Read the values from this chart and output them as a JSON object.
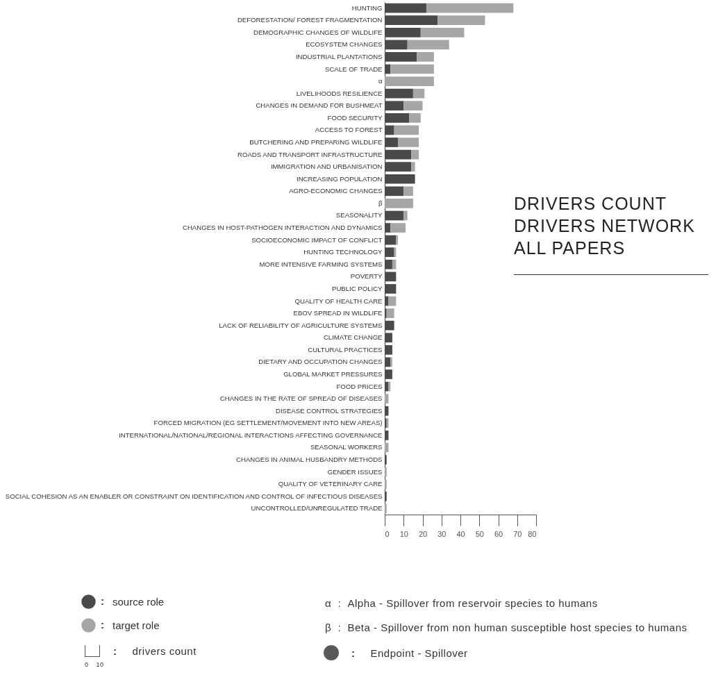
{
  "chart_data": {
    "type": "bar",
    "orientation": "horizontal",
    "stacked": true,
    "title": "DRIVERS COUNT\nDRIVERS NETWORK\nALL PAPERS",
    "categories": [
      "HUNTING",
      "DEFORESTATION/ FOREST FRAGMENTATION",
      "DEMOGRAPHIC CHANGES OF WILDLIFE",
      "ECOSYSTEM CHANGES",
      "INDUSTRIAL PLANTATIONS",
      "SCALE OF TRADE",
      "α",
      "LIVELIHOODS RESILIENCE",
      "CHANGES IN DEMAND FOR BUSHMEAT",
      "FOOD SECURITY",
      "ACCESS TO FOREST",
      "BUTCHERING AND PREPARING WILDLIFE",
      "ROADS AND TRANSPORT INFRASTRUCTURE",
      "IMMIGRATION AND URBANISATION",
      "INCREASING POPULATION",
      "AGRO-ECONOMIC CHANGES",
      "β",
      "SEASONALITY",
      "CHANGES IN HOST-PATHOGEN INTERACTION AND DYNAMICS",
      "SOCIOECONOMIC IMPACT OF CONFLICT",
      "HUNTING TECHNOLOGY",
      "MORE INTENSIVE FARMING SYSTEMS",
      "POVERTY",
      "PUBLIC POLICY",
      "QUALITY OF HEALTH CARE",
      "EBOV SPREAD IN WILDLIFE",
      "LACK OF RELIABILITY OF AGRICULTURE SYSTEMS",
      "CLIMATE CHANGE",
      "CULTURAL PRACTICES",
      "DIETARY AND OCCUPATION CHANGES",
      "GLOBAL MARKET PRESSURES",
      "FOOD PRICES",
      "CHANGES IN THE RATE OF SPREAD OF DISEASES",
      "DISEASE CONTROL STRATEGIES",
      "FORCED MIGRATION (EG SETTLEMENT/MOVEMENT INTO NEW AREAS)",
      "INTERNATIONAL/NATIONAL/REGIONAL INTERACTIONS AFFECTING GOVERNANCE",
      "SEASONAL WORKERS",
      "CHANGES IN ANIMAL HUSBANDRY METHODS",
      "GENDER ISSUES",
      "QUALITY OF VETERINARY CARE",
      "SOCIAL COHESION AS AN ENABLER OR CONSTRAINT ON IDENTIFICATION AND CONTROL OF INFECTIOUS DISEASES",
      "UNCONTROLLED/UNREGULATED TRADE"
    ],
    "series": [
      {
        "name": "source role",
        "color": "#4a4a4a",
        "values": [
          22,
          28,
          19,
          12,
          17,
          3,
          0,
          15,
          10,
          13,
          5,
          7,
          14,
          14,
          16,
          10,
          0,
          10,
          3,
          6,
          5,
          4,
          6,
          6,
          2,
          1,
          5,
          4,
          4,
          3,
          4,
          2,
          0,
          2,
          1,
          2,
          0,
          1,
          0,
          0,
          1,
          0
        ]
      },
      {
        "name": "target role",
        "color": "#a6a6a6",
        "values": [
          46,
          25,
          23,
          22,
          9,
          23,
          26,
          6,
          10,
          6,
          13,
          11,
          4,
          2,
          0,
          5,
          15,
          2,
          8,
          1,
          1,
          2,
          0,
          0,
          4,
          4,
          0,
          0,
          0,
          1,
          0,
          1,
          2,
          0,
          1,
          0,
          2,
          0,
          1,
          1,
          0,
          1
        ]
      }
    ],
    "xlim": [
      0,
      80
    ],
    "xticks": [
      0,
      10,
      20,
      30,
      40,
      50,
      60,
      70,
      80
    ],
    "grid": false,
    "legend": "bottom",
    "annotations": [
      ":",
      "drivers count",
      "0 10",
      "α  :  Alpha - Spillover from reservoir species to humans",
      "β  :  Beta - Spillover from non human susceptible host species to humans",
      "Endpoint - Spillover"
    ]
  }
}
